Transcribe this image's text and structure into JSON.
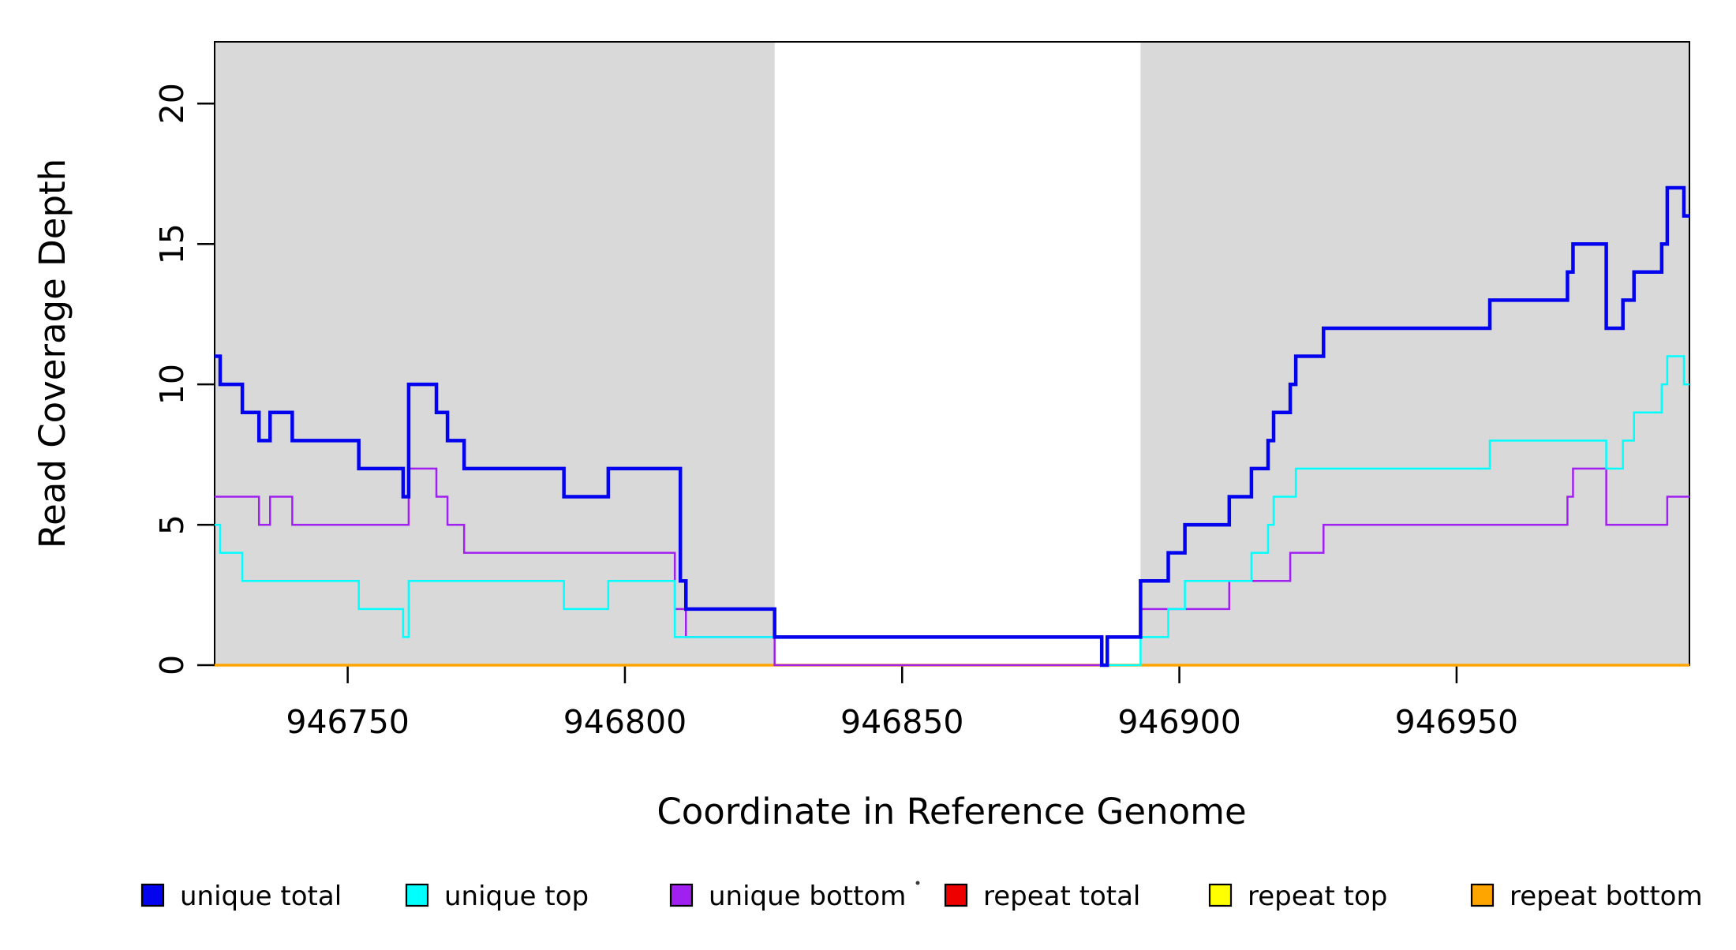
{
  "figure": {
    "background": "#FFFFFF",
    "box_color": "#000000",
    "shade_color": "#D9D9D9"
  },
  "chart_data": {
    "type": "step",
    "title": "",
    "xlabel": "Coordinate in Reference Genome",
    "ylabel": "Read Coverage Depth",
    "xlim": [
      946726,
      946992
    ],
    "ylim": [
      0,
      22.2
    ],
    "grid": false,
    "x_ticks": [
      {
        "value": 946750,
        "label": "946750"
      },
      {
        "value": 946800,
        "label": "946800"
      },
      {
        "value": 946850,
        "label": "946850"
      },
      {
        "value": 946900,
        "label": "946900"
      },
      {
        "value": 946950,
        "label": "946950"
      }
    ],
    "y_ticks": [
      {
        "value": 0,
        "label": "0"
      },
      {
        "value": 5,
        "label": "5"
      },
      {
        "value": 10,
        "label": "10"
      },
      {
        "value": 15,
        "label": "15"
      },
      {
        "value": 20,
        "label": "20"
      }
    ],
    "shaded_regions": [
      {
        "x0": 946726,
        "x1": 946827,
        "note": "unique-mapping region left"
      },
      {
        "x0": 946893,
        "x1": 946992,
        "note": "unique-mapping region right"
      }
    ],
    "series": [
      {
        "name": "repeat total",
        "color": "#EE0000",
        "width": 2.5,
        "points": [
          [
            946726,
            0
          ],
          [
            946992,
            0
          ]
        ]
      },
      {
        "name": "repeat top",
        "color": "#FFFF00",
        "width": 2.5,
        "points": [
          [
            946726,
            0
          ],
          [
            946992,
            0
          ]
        ]
      },
      {
        "name": "repeat bottom",
        "color": "#FFA500",
        "width": 3.5,
        "points": [
          [
            946726,
            0
          ],
          [
            946992,
            0
          ]
        ]
      },
      {
        "name": "unique bottom",
        "color": "#A020F0",
        "width": 2.5,
        "points": [
          [
            946726,
            6
          ],
          [
            946734,
            5
          ],
          [
            946736,
            6
          ],
          [
            946740,
            5
          ],
          [
            946761,
            7
          ],
          [
            946766,
            6
          ],
          [
            946768,
            5
          ],
          [
            946771,
            4
          ],
          [
            946809,
            2
          ],
          [
            946811,
            1
          ],
          [
            946827,
            0
          ],
          [
            946887,
            1
          ],
          [
            946893,
            2
          ],
          [
            946909,
            3
          ],
          [
            946920,
            4
          ],
          [
            946926,
            5
          ],
          [
            946970,
            6
          ],
          [
            946971,
            7
          ],
          [
            946977,
            5
          ],
          [
            946988,
            6
          ],
          [
            946992,
            6
          ]
        ]
      },
      {
        "name": "unique top",
        "color": "#00FFFF",
        "width": 2.5,
        "points": [
          [
            946726,
            5
          ],
          [
            946727,
            4
          ],
          [
            946731,
            3
          ],
          [
            946752,
            2
          ],
          [
            946760,
            1
          ],
          [
            946761,
            3
          ],
          [
            946789,
            2
          ],
          [
            946797,
            3
          ],
          [
            946809,
            1
          ],
          [
            946886,
            0
          ],
          [
            946893,
            1
          ],
          [
            946898,
            2
          ],
          [
            946901,
            3
          ],
          [
            946913,
            4
          ],
          [
            946916,
            5
          ],
          [
            946917,
            6
          ],
          [
            946921,
            7
          ],
          [
            946956,
            8
          ],
          [
            946977,
            7
          ],
          [
            946980,
            8
          ],
          [
            946982,
            9
          ],
          [
            946987,
            10
          ],
          [
            946988,
            11
          ],
          [
            946991,
            10
          ],
          [
            946992,
            10
          ]
        ]
      },
      {
        "name": "unique total",
        "color": "#0303EE",
        "width": 4.5,
        "points": [
          [
            946726,
            11
          ],
          [
            946727,
            10
          ],
          [
            946731,
            9
          ],
          [
            946734,
            8
          ],
          [
            946736,
            9
          ],
          [
            946740,
            8
          ],
          [
            946752,
            7
          ],
          [
            946760,
            6
          ],
          [
            946761,
            10
          ],
          [
            946766,
            9
          ],
          [
            946768,
            8
          ],
          [
            946771,
            7
          ],
          [
            946789,
            6
          ],
          [
            946797,
            7
          ],
          [
            946810,
            3
          ],
          [
            946811,
            2
          ],
          [
            946827,
            1
          ],
          [
            946886,
            0
          ],
          [
            946887,
            1
          ],
          [
            946893,
            3
          ],
          [
            946898,
            4
          ],
          [
            946901,
            5
          ],
          [
            946909,
            6
          ],
          [
            946913,
            7
          ],
          [
            946916,
            8
          ],
          [
            946917,
            9
          ],
          [
            946920,
            10
          ],
          [
            946921,
            11
          ],
          [
            946926,
            12
          ],
          [
            946956,
            13
          ],
          [
            946970,
            14
          ],
          [
            946971,
            15
          ],
          [
            946977,
            12
          ],
          [
            946980,
            13
          ],
          [
            946982,
            14
          ],
          [
            946987,
            15
          ],
          [
            946988,
            17
          ],
          [
            946991,
            16
          ],
          [
            946992,
            16
          ]
        ]
      }
    ],
    "legend": {
      "position": "bottom",
      "items": [
        {
          "label": "unique total",
          "color": "#0303EE"
        },
        {
          "label": "unique top",
          "color": "#00FFFF"
        },
        {
          "label": "unique bottom",
          "color": "#A020F0"
        },
        {
          "label": "repeat total",
          "color": "#EE0000"
        },
        {
          "label": "repeat top",
          "color": "#FFFF00"
        },
        {
          "label": "repeat bottom",
          "color": "#FFA500"
        }
      ]
    }
  }
}
